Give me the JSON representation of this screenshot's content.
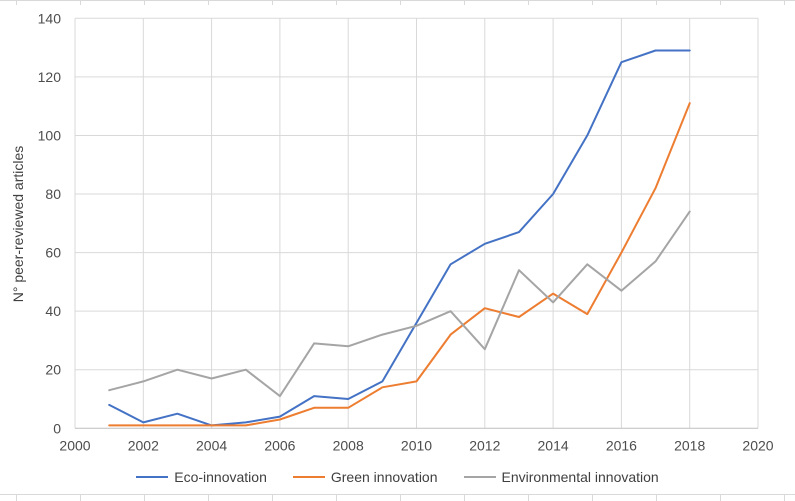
{
  "chart": {
    "title": "",
    "y_axis_title": "N° peer-reviewed articles",
    "x_tick_labels": [
      "2000",
      "2002",
      "2004",
      "2006",
      "2008",
      "2010",
      "2012",
      "2014",
      "2016",
      "2018",
      "2020"
    ],
    "y_tick_labels": [
      "0",
      "20",
      "40",
      "60",
      "80",
      "100",
      "120",
      "140"
    ],
    "colors": {
      "eco_innovation": "#4472C4",
      "green_innovation": "#ED7D31",
      "environmental_innovation": "#A5A5A5",
      "gridline": "#D9D9D9",
      "axis_line": "#BFBFBF",
      "tick_text": "#4D4D4D",
      "worksheet_edge": "#D9D9D9"
    },
    "legend_position": "bottom"
  },
  "chart_data": {
    "type": "line",
    "title": "",
    "xlabel": "",
    "ylabel": "N° peer-reviewed articles",
    "xlim": [
      2000,
      2020
    ],
    "ylim": [
      0,
      140
    ],
    "grid": true,
    "legend_position": "bottom",
    "x": [
      2001,
      2002,
      2003,
      2004,
      2005,
      2006,
      2007,
      2008,
      2009,
      2010,
      2011,
      2012,
      2013,
      2014,
      2015,
      2016,
      2017,
      2018
    ],
    "series": [
      {
        "name": "Eco-innovation",
        "color": "#4472C4",
        "values": [
          8,
          2,
          5,
          1,
          2,
          4,
          11,
          10,
          16,
          36,
          56,
          63,
          67,
          80,
          100,
          125,
          129,
          129
        ]
      },
      {
        "name": "Green innovation",
        "color": "#ED7D31",
        "values": [
          1,
          1,
          1,
          1,
          1,
          3,
          7,
          7,
          14,
          16,
          32,
          41,
          38,
          46,
          39,
          60,
          82,
          111
        ]
      },
      {
        "name": "Environmental innovation",
        "color": "#A5A5A5",
        "values": [
          13,
          16,
          20,
          17,
          20,
          11,
          29,
          28,
          32,
          35,
          40,
          27,
          54,
          43,
          56,
          47,
          57,
          74
        ]
      }
    ]
  }
}
